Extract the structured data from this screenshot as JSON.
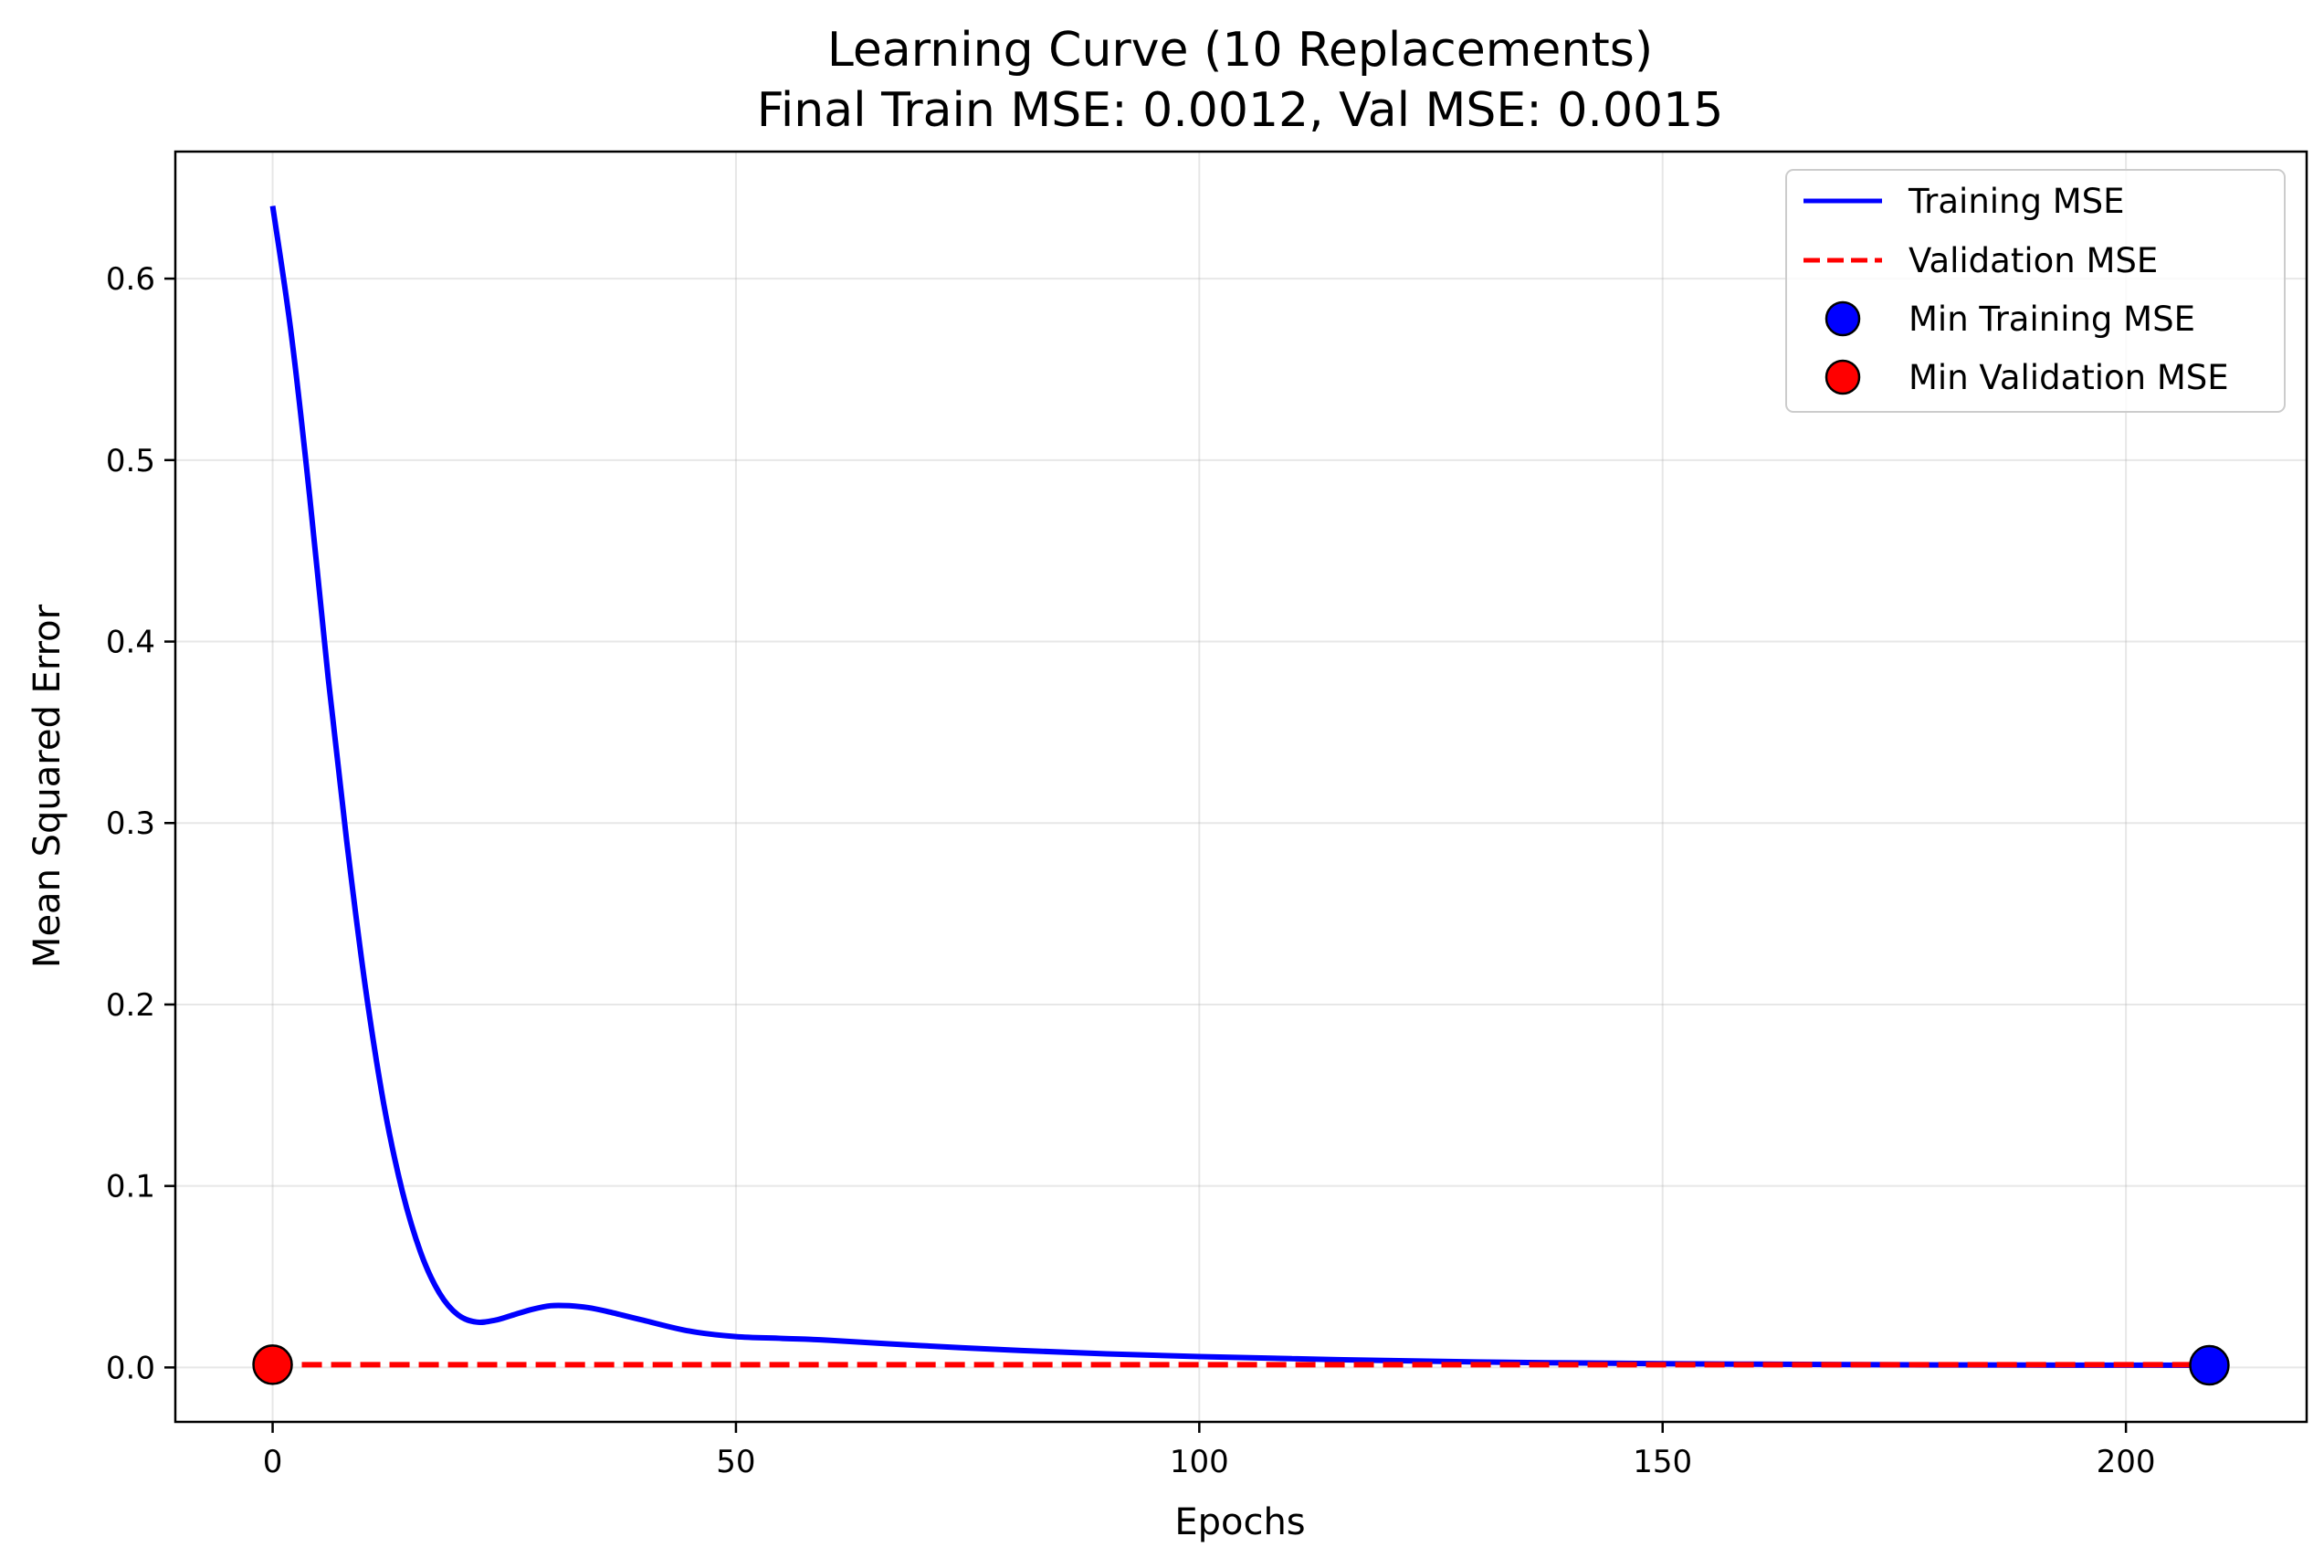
{
  "chart_data": {
    "type": "line",
    "title": "Learning Curve (10 Replacements)",
    "subtitle": "Final Train MSE: 0.0012, Val MSE: 0.0015",
    "xlabel": "Epochs",
    "ylabel": "Mean Squared Error",
    "xlim": [
      -10.5,
      219.5
    ],
    "ylim": [
      -0.03,
      0.67
    ],
    "xticks": [
      0,
      50,
      100,
      150,
      200
    ],
    "yticks": [
      0.0,
      0.1,
      0.2,
      0.3,
      0.4,
      0.5,
      0.6
    ],
    "xtick_labels": [
      "0",
      "50",
      "100",
      "150",
      "200"
    ],
    "ytick_labels": [
      "0.0",
      "0.1",
      "0.2",
      "0.3",
      "0.4",
      "0.5",
      "0.6"
    ],
    "grid": true,
    "legend_position": "top-right",
    "series": [
      {
        "name": "Training MSE",
        "color": "#0000ff",
        "style": "solid",
        "x": [
          0,
          2,
          4,
          6,
          8,
          10,
          12,
          14,
          16,
          18,
          20,
          22,
          24,
          26,
          28,
          30,
          32,
          34,
          36,
          40,
          45,
          50,
          55,
          60,
          70,
          80,
          90,
          100,
          110,
          120,
          130,
          140,
          150,
          160,
          170,
          180,
          190,
          200,
          209
        ],
        "y": [
          0.64,
          0.57,
          0.48,
          0.38,
          0.29,
          0.21,
          0.145,
          0.097,
          0.063,
          0.041,
          0.029,
          0.025,
          0.026,
          0.029,
          0.032,
          0.034,
          0.034,
          0.033,
          0.031,
          0.026,
          0.02,
          0.017,
          0.016,
          0.015,
          0.012,
          0.0095,
          0.0075,
          0.006,
          0.0048,
          0.0038,
          0.003,
          0.0025,
          0.0021,
          0.0018,
          0.0016,
          0.0014,
          0.0013,
          0.00125,
          0.0012
        ]
      },
      {
        "name": "Validation MSE",
        "color": "#ff0000",
        "style": "dashed",
        "x": [
          0,
          50,
          100,
          150,
          209
        ],
        "y": [
          0.0015,
          0.0015,
          0.0015,
          0.0015,
          0.0015
        ]
      }
    ],
    "markers": [
      {
        "name": "Min Training MSE",
        "color": "#0000ff",
        "x": 209,
        "y": 0.0012
      },
      {
        "name": "Min Validation MSE",
        "color": "#ff0000",
        "x": 0,
        "y": 0.0015
      }
    ]
  }
}
